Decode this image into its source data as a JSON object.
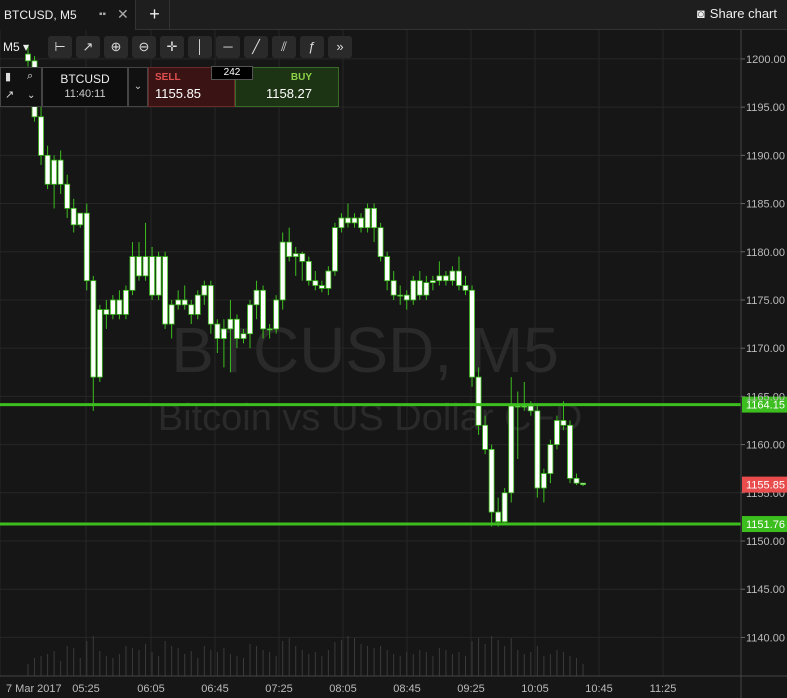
{
  "tab": {
    "title": "BTCUSD, M5"
  },
  "share": {
    "label": "Share chart"
  },
  "toolbar": {
    "timeframe": "M5",
    "tools": [
      "crosshair-ruler-icon",
      "line-chart-icon",
      "zoom-in-icon",
      "zoom-out-icon",
      "crosshair-icon",
      "vertical-line-icon",
      "horizontal-line-icon",
      "trend-line-icon",
      "fibonacci-icon",
      "function-icon",
      "fast-forward-icon"
    ]
  },
  "ticket": {
    "symbol": "BTCUSD",
    "time": "11:40:11",
    "sell_label": "SELL",
    "sell_price": "1155.85",
    "spread": "242",
    "buy_label": "BUY",
    "buy_price": "1158.27"
  },
  "colors": {
    "background": "#161616",
    "support_line": "#3cbe1e",
    "current_price_tag": "#e84c4c",
    "up_candle": "#ffffff",
    "down_candle": "#ffffff"
  },
  "chart_data": {
    "type": "candlestick",
    "title": "BTCUSD, M5",
    "watermark_line1": "BTCUSD, M5",
    "watermark_line2": "Bitcoin vs US Dollar CFD",
    "ylim": [
      1136,
      1203
    ],
    "y_ticks": [
      "1200.00",
      "1195.00",
      "1190.00",
      "1185.00",
      "1180.00",
      "1175.00",
      "1170.00",
      "1165.00",
      "1160.00",
      "1155.00",
      "1150.00",
      "1145.00",
      "1140.00"
    ],
    "x_labels": [
      "7 Mar 2017",
      "05:25",
      "06:05",
      "06:45",
      "07:25",
      "08:05",
      "08:45",
      "09:25",
      "10:05",
      "10:45",
      "11:25"
    ],
    "horizontal_lines": [
      {
        "label": "1164.15",
        "value": 1164.15
      },
      {
        "label": "1151.76",
        "value": 1151.76
      }
    ],
    "current_price": {
      "label": "1155.85",
      "value": 1155.85
    },
    "candles": [
      [
        1200.5,
        1201.5,
        1199.2,
        1199.8
      ],
      [
        1199.8,
        1200.3,
        1193.5,
        1194.0
      ],
      [
        1194.0,
        1195.5,
        1189.0,
        1190.0
      ],
      [
        1190.0,
        1191.0,
        1186.5,
        1187.0
      ],
      [
        1187.0,
        1190.0,
        1184.5,
        1189.5
      ],
      [
        1189.5,
        1190.5,
        1186.0,
        1187.0
      ],
      [
        1187.0,
        1188.0,
        1183.5,
        1184.5
      ],
      [
        1184.5,
        1185.5,
        1182.0,
        1182.8
      ],
      [
        1182.8,
        1184.0,
        1182.5,
        1184.0
      ],
      [
        1184.0,
        1185.0,
        1176.0,
        1177.0
      ],
      [
        1177.0,
        1177.5,
        1163.5,
        1167.0
      ],
      [
        1167.0,
        1174.5,
        1166.5,
        1174.0
      ],
      [
        1174.0,
        1175.0,
        1172.0,
        1173.5
      ],
      [
        1173.5,
        1175.5,
        1173.0,
        1175.0
      ],
      [
        1175.0,
        1176.0,
        1173.0,
        1173.5
      ],
      [
        1173.5,
        1176.5,
        1173.0,
        1176.0
      ],
      [
        1176.0,
        1181.0,
        1175.5,
        1179.5
      ],
      [
        1179.5,
        1181.0,
        1177.0,
        1177.5
      ],
      [
        1177.5,
        1183.0,
        1177.0,
        1179.5
      ],
      [
        1179.5,
        1180.5,
        1175.0,
        1175.5
      ],
      [
        1175.5,
        1180.0,
        1175.0,
        1179.5
      ],
      [
        1179.5,
        1180.0,
        1172.0,
        1172.5
      ],
      [
        1172.5,
        1175.0,
        1171.0,
        1174.5
      ],
      [
        1174.5,
        1176.0,
        1174.0,
        1175.0
      ],
      [
        1175.0,
        1176.5,
        1174.0,
        1174.5
      ],
      [
        1174.5,
        1175.0,
        1172.5,
        1173.5
      ],
      [
        1173.5,
        1176.0,
        1173.0,
        1175.5
      ],
      [
        1175.5,
        1177.0,
        1174.5,
        1176.5
      ],
      [
        1176.5,
        1177.0,
        1171.5,
        1172.5
      ],
      [
        1172.5,
        1173.0,
        1169.5,
        1171.0
      ],
      [
        1171.0,
        1173.0,
        1168.0,
        1172.0
      ],
      [
        1172.0,
        1175.0,
        1167.5,
        1173.0
      ],
      [
        1173.0,
        1173.5,
        1170.0,
        1171.0
      ],
      [
        1171.0,
        1172.0,
        1170.5,
        1171.5
      ],
      [
        1171.5,
        1175.0,
        1170.0,
        1174.5
      ],
      [
        1174.5,
        1177.0,
        1173.0,
        1176.0
      ],
      [
        1176.0,
        1176.5,
        1171.0,
        1172.0
      ],
      [
        1172.0,
        1172.5,
        1171.0,
        1172.0
      ],
      [
        1172.0,
        1175.5,
        1171.5,
        1175.0
      ],
      [
        1175.0,
        1182.0,
        1174.0,
        1181.0
      ],
      [
        1181.0,
        1182.5,
        1179.0,
        1179.5
      ],
      [
        1179.5,
        1180.5,
        1177.5,
        1179.8
      ],
      [
        1179.8,
        1180.0,
        1177.0,
        1179.0
      ],
      [
        1179.0,
        1179.5,
        1176.5,
        1177.0
      ],
      [
        1177.0,
        1178.0,
        1176.0,
        1176.5
      ],
      [
        1176.5,
        1177.0,
        1175.8,
        1176.2
      ],
      [
        1176.2,
        1178.5,
        1175.5,
        1178.0
      ],
      [
        1178.0,
        1183.0,
        1177.5,
        1182.5
      ],
      [
        1182.5,
        1184.0,
        1182.0,
        1183.5
      ],
      [
        1183.5,
        1185.0,
        1182.5,
        1183.0
      ],
      [
        1183.0,
        1184.0,
        1182.5,
        1183.5
      ],
      [
        1183.5,
        1184.0,
        1182.0,
        1182.5
      ],
      [
        1182.5,
        1185.0,
        1182.0,
        1184.5
      ],
      [
        1184.5,
        1185.0,
        1181.0,
        1182.5
      ],
      [
        1182.5,
        1183.0,
        1179.0,
        1179.5
      ],
      [
        1179.5,
        1180.0,
        1176.0,
        1177.0
      ],
      [
        1177.0,
        1178.0,
        1175.0,
        1175.5
      ],
      [
        1175.5,
        1176.5,
        1174.5,
        1175.5
      ],
      [
        1175.5,
        1176.0,
        1174.0,
        1175.0
      ],
      [
        1175.0,
        1177.5,
        1174.5,
        1177.0
      ],
      [
        1177.0,
        1178.0,
        1175.0,
        1175.5
      ],
      [
        1175.5,
        1177.5,
        1175.0,
        1176.8
      ],
      [
        1176.8,
        1177.5,
        1176.0,
        1177.0
      ],
      [
        1177.0,
        1179.0,
        1176.5,
        1177.5
      ],
      [
        1177.5,
        1178.0,
        1176.5,
        1177.0
      ],
      [
        1177.0,
        1178.5,
        1176.5,
        1178.0
      ],
      [
        1178.0,
        1179.5,
        1176.0,
        1176.5
      ],
      [
        1176.5,
        1177.5,
        1175.5,
        1176.0
      ],
      [
        1176.0,
        1176.5,
        1166.0,
        1167.0
      ],
      [
        1167.0,
        1168.0,
        1161.0,
        1162.0
      ],
      [
        1162.0,
        1163.0,
        1159.0,
        1159.5
      ],
      [
        1159.5,
        1160.0,
        1151.5,
        1153.0
      ],
      [
        1153.0,
        1154.5,
        1151.5,
        1152.0
      ],
      [
        1152.0,
        1155.5,
        1151.8,
        1155.0
      ],
      [
        1155.0,
        1167.0,
        1154.0,
        1164.0
      ],
      [
        1164.0,
        1165.5,
        1158.5,
        1164.0
      ],
      [
        1164.0,
        1166.5,
        1163.5,
        1164.0
      ],
      [
        1164.0,
        1164.5,
        1163.0,
        1163.5
      ],
      [
        1163.5,
        1164.0,
        1154.5,
        1155.5
      ],
      [
        1155.5,
        1157.5,
        1154.0,
        1157.0
      ],
      [
        1157.0,
        1160.5,
        1156.0,
        1160.0
      ],
      [
        1160.0,
        1163.0,
        1159.5,
        1162.5
      ],
      [
        1162.5,
        1164.5,
        1161.5,
        1162.0
      ],
      [
        1162.0,
        1162.5,
        1156.0,
        1156.5
      ],
      [
        1156.5,
        1157.0,
        1155.8,
        1156.0
      ],
      [
        1156.0,
        1156.0,
        1155.7,
        1155.85
      ]
    ],
    "volumes": [
      12,
      18,
      20,
      22,
      25,
      15,
      30,
      28,
      18,
      35,
      40,
      25,
      20,
      18,
      22,
      30,
      28,
      26,
      32,
      24,
      20,
      35,
      30,
      28,
      22,
      25,
      18,
      30,
      26,
      24,
      28,
      22,
      20,
      18,
      32,
      30,
      26,
      24,
      20,
      35,
      38,
      30,
      26,
      22,
      24,
      20,
      26,
      34,
      36,
      40,
      38,
      32,
      30,
      28,
      30,
      26,
      22,
      20,
      24,
      22,
      26,
      24,
      20,
      28,
      26,
      22,
      24,
      20,
      35,
      38,
      32,
      40,
      36,
      30,
      38,
      26,
      22,
      24,
      30,
      20,
      22,
      26,
      24,
      20,
      18,
      12
    ]
  }
}
